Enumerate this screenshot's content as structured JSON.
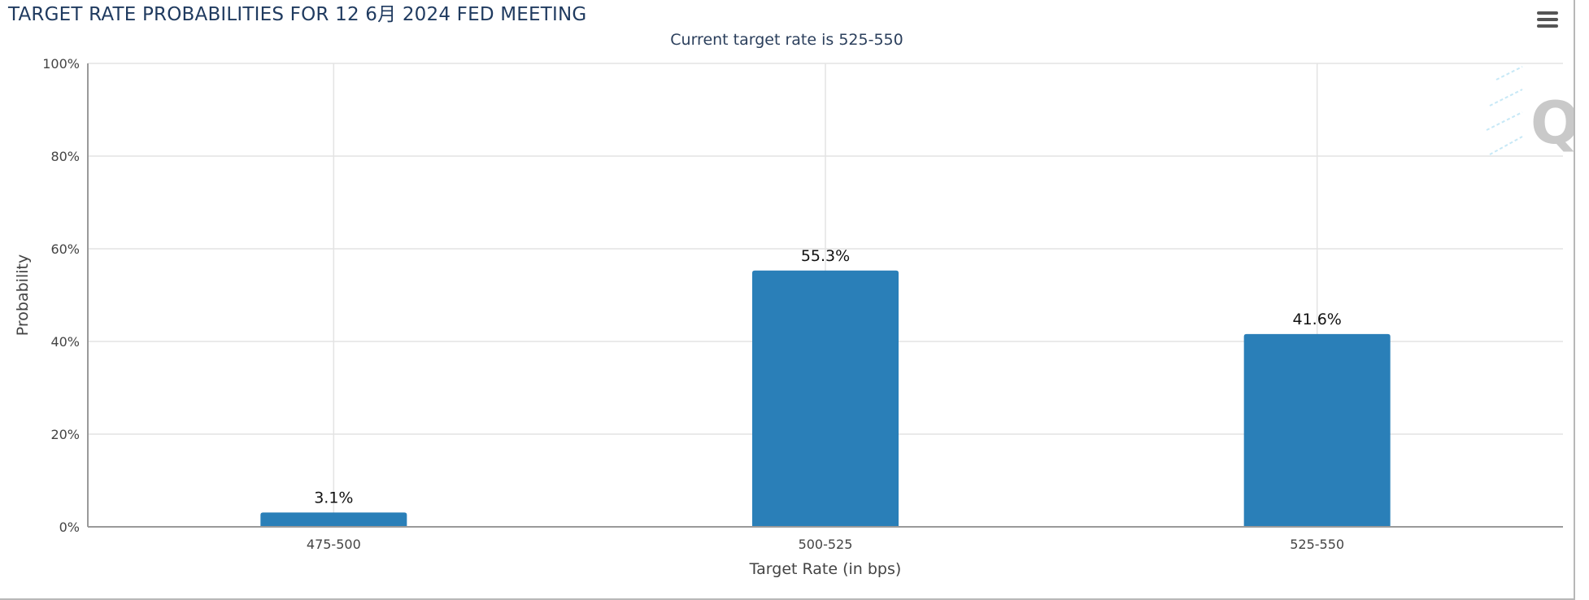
{
  "chart_data": {
    "type": "bar",
    "title": "TARGET RATE PROBABILITIES FOR 12 6月 2024 FED MEETING",
    "subtitle": "Current target rate is 525-550",
    "xlabel": "Target Rate (in bps)",
    "ylabel": "Probability",
    "categories": [
      "475-500",
      "500-525",
      "525-550"
    ],
    "values": [
      3.1,
      55.3,
      41.6
    ],
    "data_labels": [
      "3.1%",
      "55.3%",
      "41.6%"
    ],
    "ylim": [
      0,
      100
    ],
    "yticks": [
      0,
      20,
      40,
      60,
      80,
      100
    ],
    "ytick_labels": [
      "0%",
      "20%",
      "40%",
      "60%",
      "80%",
      "100%"
    ],
    "grid": true,
    "bar_color": "#2a7fb8",
    "grid_color": "#e3e3e3"
  },
  "icons": {
    "menu": "hamburger-menu-icon",
    "watermark": "q-logo-watermark"
  }
}
